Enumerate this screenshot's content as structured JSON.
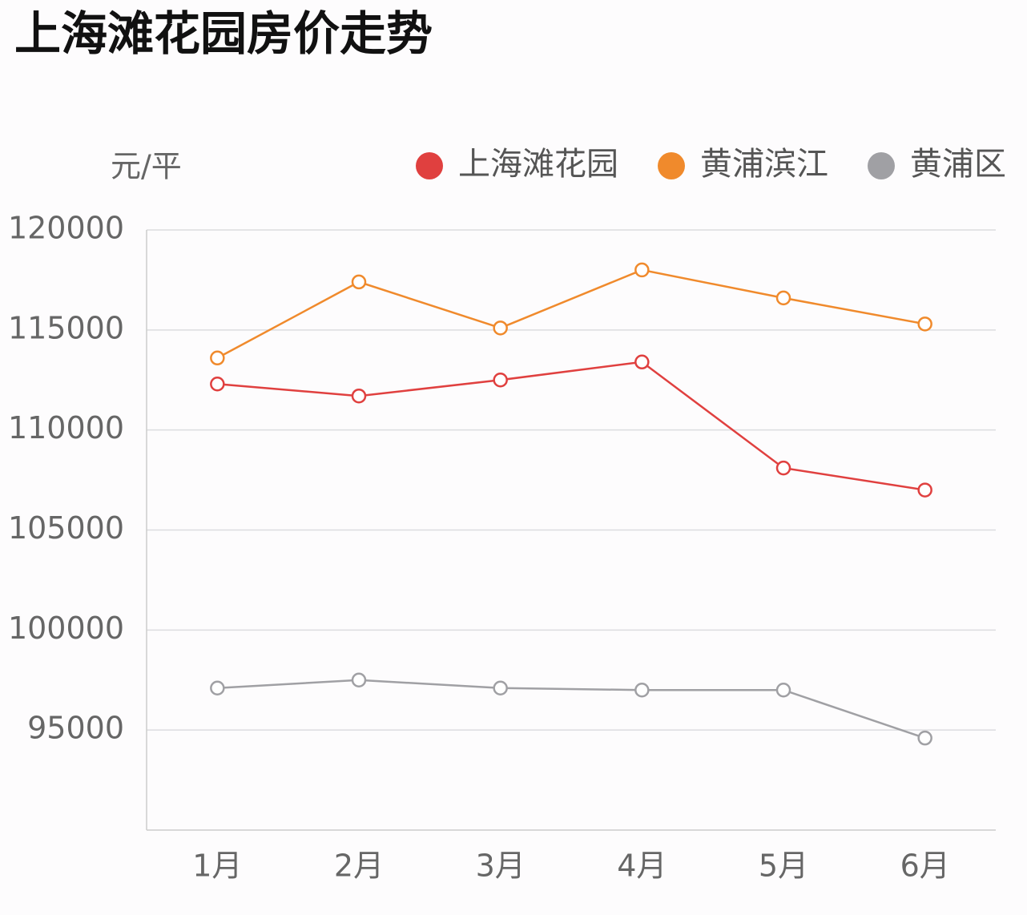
{
  "chart_data": {
    "type": "line",
    "title": "上海滩花园房价走势",
    "y_unit": "元/平",
    "categories": [
      "1月",
      "2月",
      "3月",
      "4月",
      "5月",
      "6月"
    ],
    "series": [
      {
        "name": "上海滩花园",
        "color": "#e0403f",
        "values": [
          112300,
          111700,
          112500,
          113400,
          108100,
          107000
        ]
      },
      {
        "name": "黄浦滨江",
        "color": "#f08a2c",
        "values": [
          113600,
          117400,
          115100,
          118000,
          116600,
          115300
        ]
      },
      {
        "name": "黄浦区",
        "color": "#a0a0a4",
        "values": [
          97100,
          97500,
          97100,
          97000,
          97000,
          94600
        ]
      }
    ],
    "ylim": [
      90000,
      120000
    ],
    "yticks": [
      95000,
      100000,
      105000,
      110000,
      115000,
      120000
    ],
    "grid": true,
    "legend": "top-right"
  }
}
